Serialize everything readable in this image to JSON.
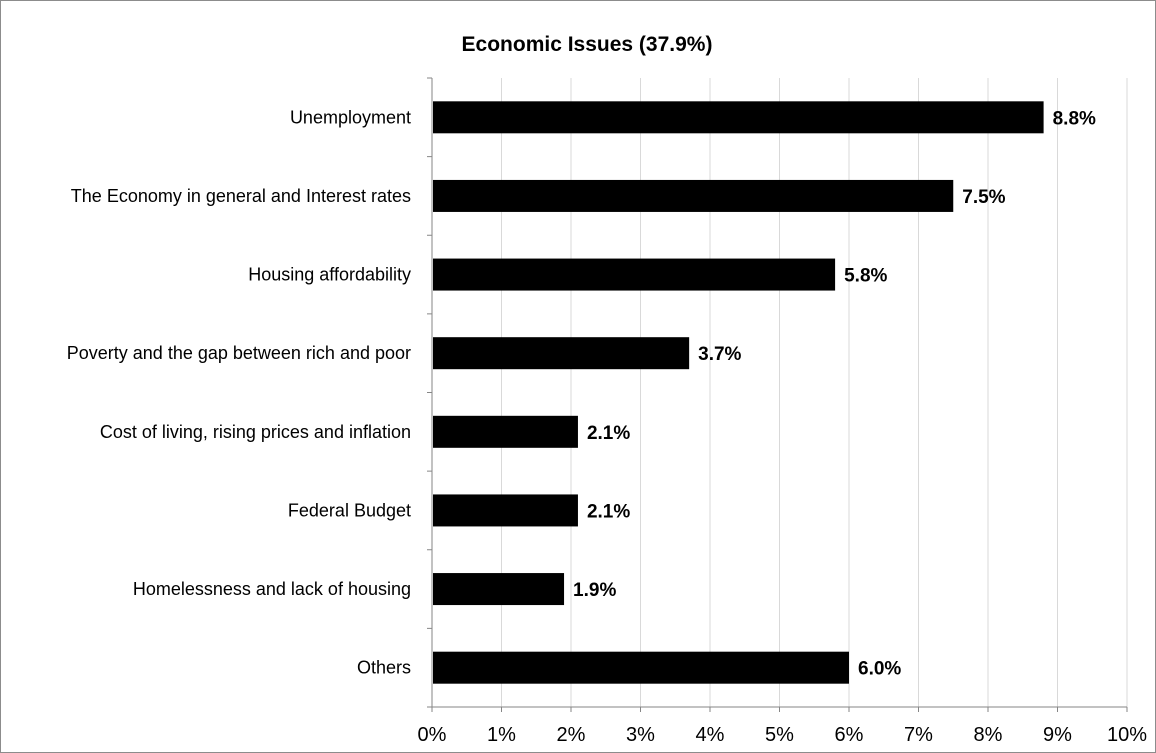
{
  "chart_data": {
    "type": "bar",
    "orientation": "horizontal",
    "title": "Economic Issues (37.9%)",
    "categories": [
      "Unemployment",
      "The Economy in general and Interest rates",
      "Housing affordability",
      "Poverty and the gap between rich and poor",
      "Cost of living, rising prices and inflation",
      "Federal Budget",
      "Homelessness and lack of housing",
      "Others"
    ],
    "values": [
      8.8,
      7.5,
      5.8,
      3.7,
      2.1,
      2.1,
      1.9,
      6.0
    ],
    "value_labels": [
      "8.8%",
      "7.5%",
      "5.8%",
      "3.7%",
      "2.1%",
      "2.1%",
      "1.9%",
      "6.0%"
    ],
    "xlim": [
      0,
      10
    ],
    "x_ticks": [
      0,
      1,
      2,
      3,
      4,
      5,
      6,
      7,
      8,
      9,
      10
    ],
    "x_tick_labels": [
      "0%",
      "1%",
      "2%",
      "3%",
      "4%",
      "5%",
      "6%",
      "7%",
      "8%",
      "9%",
      "10%"
    ],
    "xlabel": "",
    "ylabel": "",
    "grid": true,
    "legend": "none",
    "colors": {
      "bar": "#000000",
      "grid": "#d9d9d9",
      "axis": "#868686"
    }
  }
}
